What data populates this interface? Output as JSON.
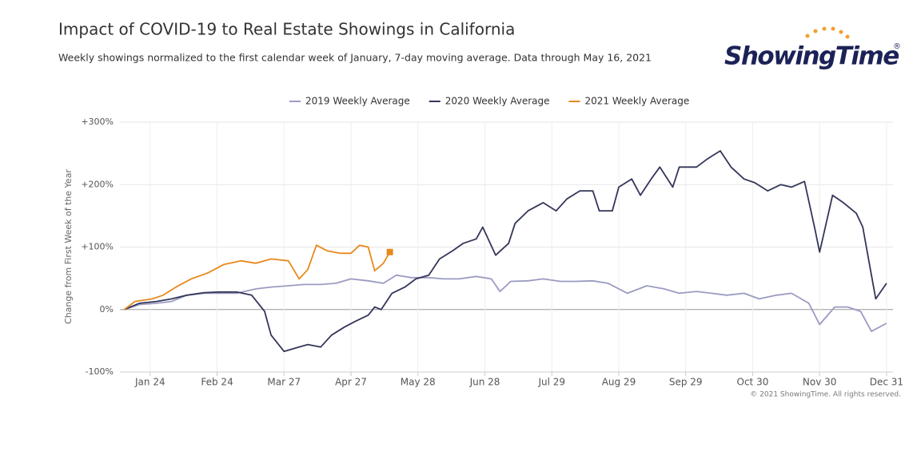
{
  "chart_data": {
    "type": "line",
    "title": "Impact of COVID-19 to Real Estate Showings in California",
    "subtitle": "Weekly showings normalized to the first calendar week of January, 7-day moving average. Data through May 16, 2021",
    "logo": "ShowingTime",
    "logo_mark": "®",
    "ylabel": "Change from First Week of the Year",
    "credit": "© 2021 ShowingTime. All rights reserved.",
    "legend": "top",
    "grid": true,
    "xlim": [
      10,
      368
    ],
    "ylim": [
      -100,
      300
    ],
    "xticks": [
      {
        "value": 24,
        "label": "Jan 24"
      },
      {
        "value": 55,
        "label": "Feb 24"
      },
      {
        "value": 86,
        "label": "Mar 27"
      },
      {
        "value": 117,
        "label": "Apr 27"
      },
      {
        "value": 148,
        "label": "May 28"
      },
      {
        "value": 179,
        "label": "Jun 28"
      },
      {
        "value": 210,
        "label": "Jul 29"
      },
      {
        "value": 241,
        "label": "Aug 29"
      },
      {
        "value": 272,
        "label": "Sep 29"
      },
      {
        "value": 303,
        "label": "Oct 30"
      },
      {
        "value": 334,
        "label": "Nov 30"
      },
      {
        "value": 365,
        "label": "Dec 31"
      }
    ],
    "yticks": [
      {
        "value": -100,
        "label": "-100%"
      },
      {
        "value": 0,
        "label": "0%"
      },
      {
        "value": 100,
        "label": "+100%"
      },
      {
        "value": 200,
        "label": "+200%"
      },
      {
        "value": 300,
        "label": "+300%"
      }
    ],
    "series": [
      {
        "name": "2019 Weekly Average",
        "color": "#9b9bc2",
        "x": [
          12,
          19,
          27,
          34,
          41,
          49,
          56,
          64,
          73,
          80,
          88,
          95,
          103,
          110,
          117,
          125,
          132,
          138,
          145,
          153,
          160,
          167,
          175,
          182,
          186,
          191,
          199,
          206,
          214,
          221,
          229,
          236,
          245,
          254,
          262,
          269,
          277,
          284,
          291,
          299,
          306,
          314,
          321,
          329,
          334,
          341,
          347,
          353,
          358,
          365
        ],
        "values": [
          0,
          8,
          10,
          13,
          23,
          26,
          26,
          26,
          33,
          36,
          38,
          40,
          40,
          42,
          49,
          46,
          42,
          55,
          51,
          51,
          49,
          49,
          53,
          49,
          29,
          45,
          46,
          49,
          45,
          45,
          46,
          42,
          26,
          38,
          33,
          26,
          29,
          26,
          23,
          26,
          17,
          23,
          26,
          10,
          -24,
          4,
          4,
          -3,
          -35,
          -22
        ]
      },
      {
        "name": "2020 Weekly Average",
        "color": "#33365a",
        "x": [
          12,
          19,
          27,
          34,
          41,
          49,
          56,
          64,
          71,
          77,
          80,
          86,
          91,
          97,
          103,
          108,
          114,
          119,
          125,
          128,
          131,
          136,
          142,
          147,
          153,
          158,
          164,
          169,
          175,
          178,
          184,
          190,
          193,
          199,
          206,
          212,
          217,
          223,
          229,
          232,
          238,
          241,
          247,
          251,
          256,
          260,
          266,
          269,
          277,
          282,
          288,
          293,
          299,
          304,
          310,
          316,
          321,
          327,
          332,
          334,
          340,
          345,
          351,
          354,
          358,
          360,
          365
        ],
        "values": [
          0,
          10,
          13,
          17,
          23,
          27,
          28,
          28,
          23,
          -3,
          -41,
          -67,
          -62,
          -56,
          -60,
          -41,
          -28,
          -19,
          -9,
          4,
          0,
          26,
          36,
          49,
          55,
          81,
          94,
          106,
          113,
          132,
          87,
          106,
          138,
          158,
          171,
          158,
          177,
          190,
          190,
          158,
          158,
          196,
          209,
          183,
          209,
          228,
          196,
          228,
          228,
          241,
          254,
          228,
          209,
          203,
          190,
          200,
          196,
          205,
          126,
          92,
          183,
          171,
          154,
          132,
          55,
          17,
          42
        ]
      },
      {
        "name": "2021 Weekly Average",
        "color": "#e8891e",
        "x": [
          12,
          17,
          25,
          30,
          36,
          43,
          51,
          58,
          66,
          73,
          80,
          88,
          93,
          97,
          101,
          106,
          112,
          117,
          121,
          125,
          128,
          132,
          135
        ],
        "values": [
          0,
          13,
          17,
          23,
          36,
          49,
          59,
          72,
          78,
          74,
          81,
          78,
          49,
          64,
          103,
          94,
          90,
          90,
          103,
          100,
          62,
          74,
          92
        ]
      }
    ]
  }
}
